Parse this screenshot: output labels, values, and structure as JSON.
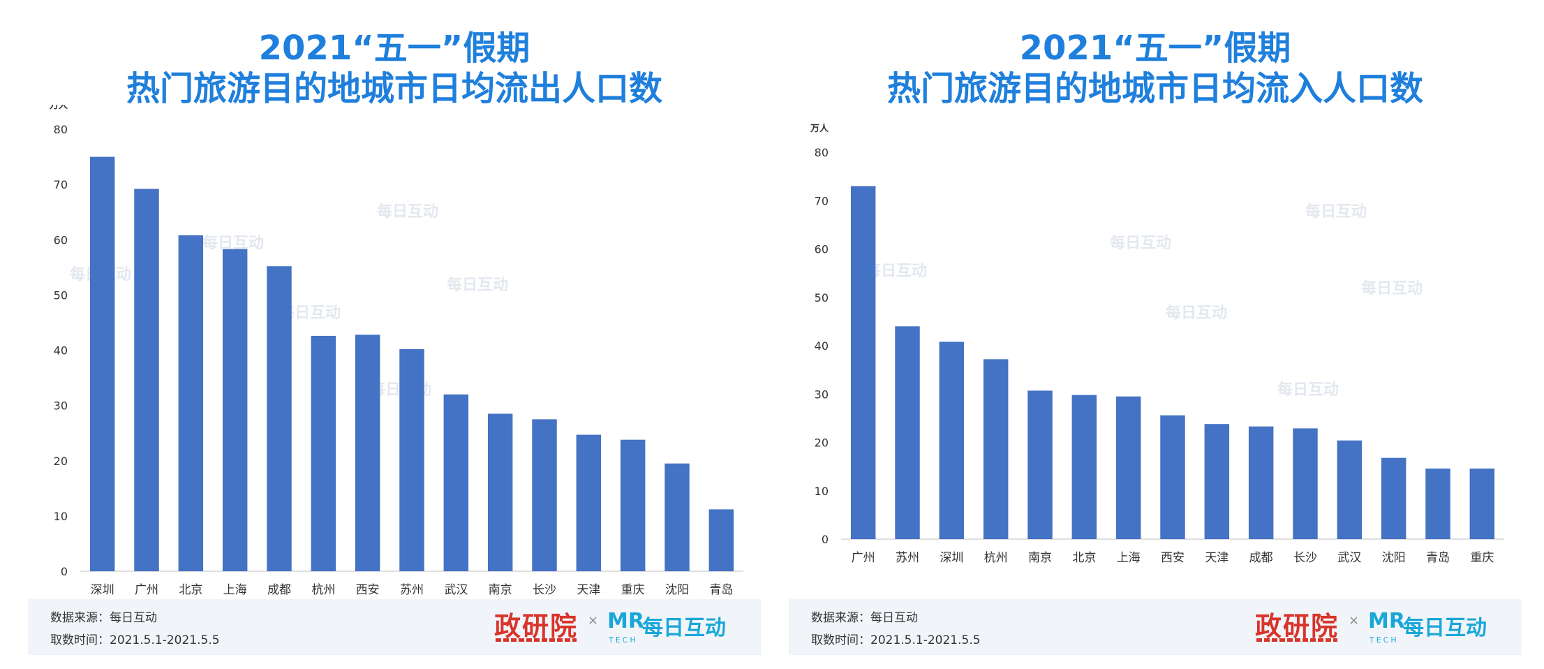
{
  "watermark": "每日互动",
  "footer": {
    "source": "数据来源：每日互动",
    "period": "取数时间：2021.5.1-2021.5.5",
    "logo_left": "政研院",
    "logo_sep": "×",
    "logo_mr": "MR",
    "logo_tech": "TECH",
    "logo_right": "每日互动"
  },
  "colors": {
    "bar": "#4472c4",
    "title": "#1f7fdc",
    "footer_bg": "#f1f5fa"
  },
  "chart_data": [
    {
      "type": "bar",
      "title_line1": "2021“五一”假期",
      "title_line2": "热门旅游目的地城市日均流出人口数",
      "unit": "万人",
      "ylim": [
        0,
        80
      ],
      "yticks": [
        0,
        10,
        20,
        30,
        40,
        50,
        60,
        70,
        80
      ],
      "grid": false,
      "categories": [
        "深圳",
        "广州",
        "北京",
        "上海",
        "成都",
        "杭州",
        "西安",
        "苏州",
        "武汉",
        "南京",
        "长沙",
        "天津",
        "重庆",
        "沈阳",
        "青岛"
      ],
      "values": [
        75,
        69.2,
        60.8,
        58.3,
        55.2,
        42.6,
        42.8,
        40.2,
        32,
        28.5,
        27.5,
        24.7,
        23.8,
        19.5,
        11.2
      ]
    },
    {
      "type": "bar",
      "title_line1": "2021“五一”假期",
      "title_line2": "热门旅游目的地城市日均流入人口数",
      "unit": "万人",
      "ylim": [
        0,
        80
      ],
      "yticks": [
        0,
        10,
        20,
        30,
        40,
        50,
        60,
        70,
        80
      ],
      "grid": false,
      "categories": [
        "广州",
        "苏州",
        "深圳",
        "杭州",
        "南京",
        "北京",
        "上海",
        "西安",
        "天津",
        "成都",
        "长沙",
        "武汉",
        "沈阳",
        "青岛",
        "重庆"
      ],
      "values": [
        73,
        44,
        40.8,
        37.2,
        30.7,
        29.8,
        29.5,
        25.6,
        23.8,
        23.3,
        22.9,
        20.4,
        16.8,
        14.6,
        14.6
      ]
    }
  ]
}
